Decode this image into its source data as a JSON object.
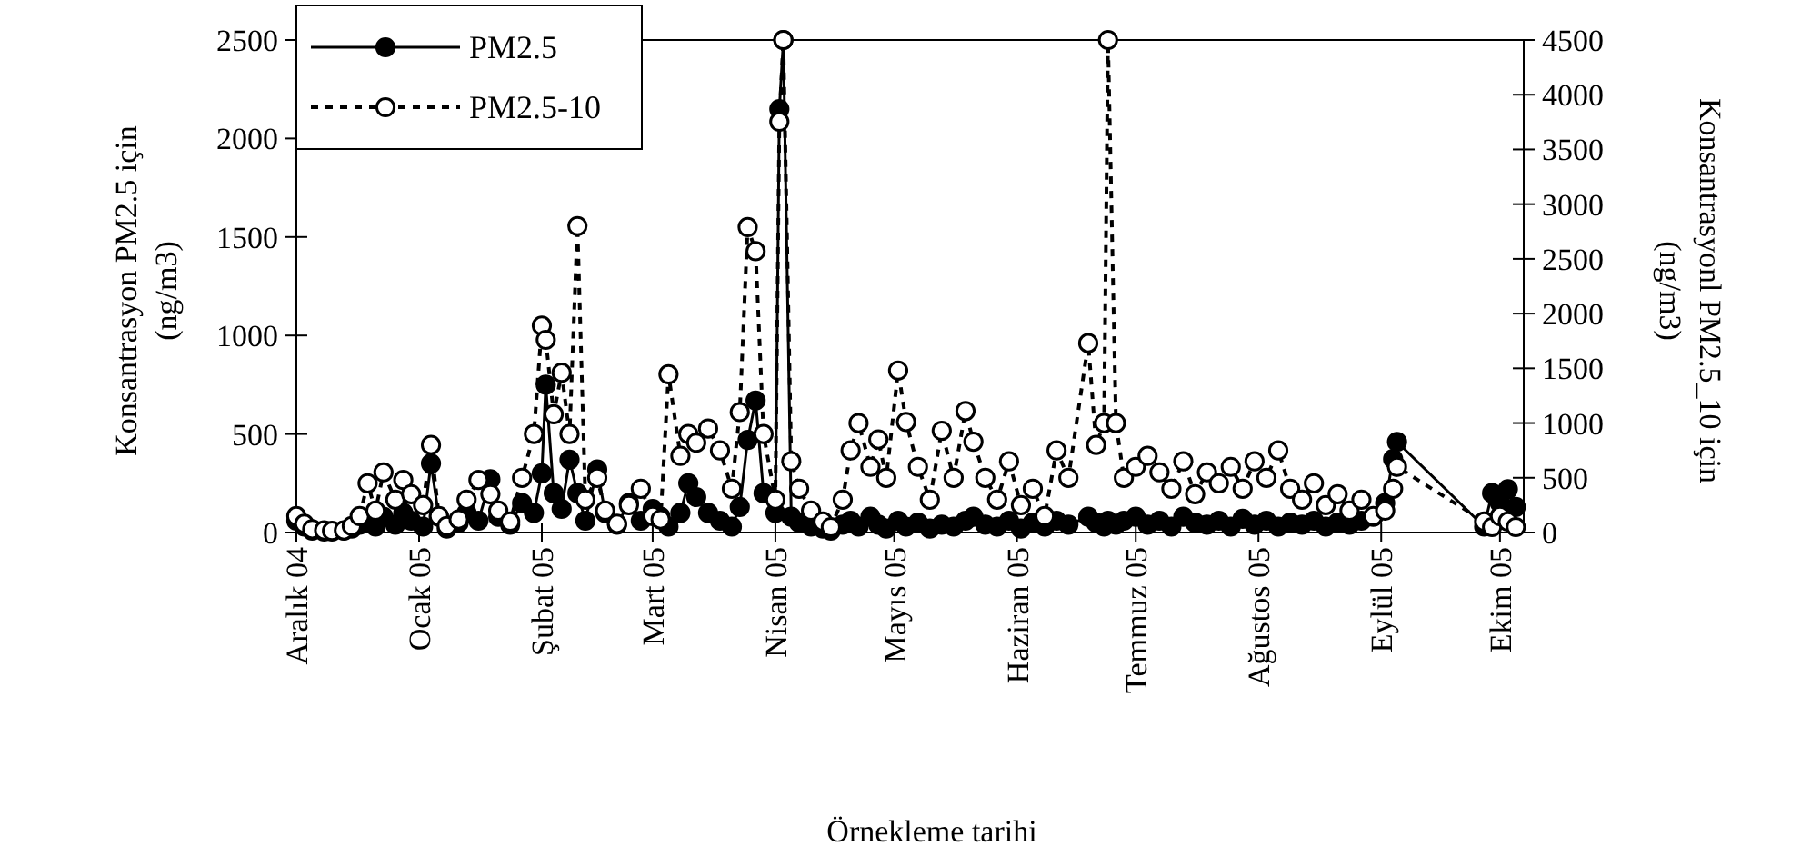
{
  "chart_data": {
    "type": "line",
    "xlabel": "Örnekleme tarihi",
    "ylabel": "Konsantrasyon PM2.5 için\n(ng/m3)",
    "y2label": "Konsantrasyonl PM2.5_10 için\n(ng/m3)",
    "x": [
      "2004-12-01",
      "2004-12-03",
      "2004-12-05",
      "2004-12-08",
      "2004-12-10",
      "2004-12-13",
      "2004-12-15",
      "2004-12-17",
      "2004-12-19",
      "2004-12-21",
      "2004-12-23",
      "2004-12-26",
      "2004-12-28",
      "2004-12-30",
      "2005-01-02",
      "2005-01-04",
      "2005-01-06",
      "2005-01-08",
      "2005-01-11",
      "2005-01-13",
      "2005-01-16",
      "2005-01-19",
      "2005-01-21",
      "2005-01-24",
      "2005-01-27",
      "2005-01-30",
      "2005-02-01",
      "2005-02-02",
      "2005-02-04",
      "2005-02-06",
      "2005-02-08",
      "2005-02-10",
      "2005-02-12",
      "2005-02-15",
      "2005-02-17",
      "2005-02-20",
      "2005-02-23",
      "2005-02-26",
      "2005-03-01",
      "2005-03-03",
      "2005-03-05",
      "2005-03-08",
      "2005-03-10",
      "2005-03-12",
      "2005-03-15",
      "2005-03-18",
      "2005-03-21",
      "2005-03-23",
      "2005-03-25",
      "2005-03-27",
      "2005-03-29",
      "2005-04-01",
      "2005-04-02",
      "2005-04-03",
      "2005-04-05",
      "2005-04-07",
      "2005-04-10",
      "2005-04-13",
      "2005-04-15",
      "2005-04-18",
      "2005-04-20",
      "2005-04-22",
      "2005-04-25",
      "2005-04-27",
      "2005-04-29",
      "2005-05-02",
      "2005-05-04",
      "2005-05-07",
      "2005-05-10",
      "2005-05-13",
      "2005-05-16",
      "2005-05-19",
      "2005-05-21",
      "2005-05-24",
      "2005-05-27",
      "2005-05-30",
      "2005-06-02",
      "2005-06-05",
      "2005-06-08",
      "2005-06-11",
      "2005-06-14",
      "2005-06-19",
      "2005-06-21",
      "2005-06-23",
      "2005-06-24",
      "2005-06-26",
      "2005-06-28",
      "2005-07-01",
      "2005-07-04",
      "2005-07-07",
      "2005-07-10",
      "2005-07-13",
      "2005-07-16",
      "2005-07-19",
      "2005-07-22",
      "2005-07-25",
      "2005-07-28",
      "2005-07-31",
      "2005-08-03",
      "2005-08-06",
      "2005-08-09",
      "2005-08-12",
      "2005-08-15",
      "2005-08-18",
      "2005-08-21",
      "2005-08-24",
      "2005-08-27",
      "2005-08-30",
      "2005-09-02",
      "2005-09-04",
      "2005-09-05",
      "2005-09-27",
      "2005-09-29",
      "2005-10-01",
      "2005-10-03",
      "2005-10-05"
    ],
    "series": [
      {
        "name": "PM2.5",
        "color": "#000000",
        "line_style": "solid",
        "values": [
          60,
          30,
          10,
          5,
          5,
          10,
          20,
          40,
          60,
          30,
          80,
          40,
          100,
          60,
          30,
          350,
          80,
          20,
          50,
          100,
          60,
          270,
          80,
          40,
          150,
          100,
          300,
          750,
          200,
          120,
          370,
          200,
          60,
          320,
          100,
          40,
          150,
          60,
          120,
          80,
          30,
          100,
          250,
          180,
          100,
          60,
          30,
          130,
          470,
          670,
          200,
          100,
          2149,
          2500,
          80,
          50,
          30,
          20,
          10,
          40,
          60,
          30,
          80,
          40,
          20,
          60,
          30,
          50,
          20,
          40,
          30,
          60,
          80,
          40,
          30,
          60,
          20,
          50,
          30,
          60,
          40,
          80,
          50,
          30,
          60,
          40,
          60,
          80,
          40,
          60,
          30,
          80,
          50,
          40,
          60,
          30,
          70,
          40,
          60,
          30,
          50,
          40,
          60,
          30,
          50,
          40,
          60,
          80,
          150,
          373,
          460,
          30,
          200,
          150,
          220,
          130
        ]
      },
      {
        "name": "PM2.5-10",
        "color": "#000000",
        "line_style": "dashed",
        "axis": "y2",
        "values": [
          150,
          80,
          30,
          20,
          15,
          20,
          60,
          150,
          450,
          200,
          550,
          300,
          480,
          350,
          250,
          800,
          150,
          60,
          120,
          300,
          480,
          350,
          200,
          100,
          500,
          900,
          1890,
          1760,
          1080,
          1460,
          900,
          2800,
          300,
          500,
          200,
          80,
          250,
          400,
          150,
          120,
          1445,
          700,
          900,
          820,
          950,
          750,
          400,
          1100,
          2790,
          2570,
          900,
          300,
          3753,
          4500,
          650,
          400,
          200,
          100,
          50,
          300,
          750,
          1000,
          600,
          850,
          500,
          1480,
          1010,
          600,
          300,
          930,
          500,
          1110,
          830,
          500,
          300,
          650,
          250,
          400,
          150,
          750,
          500,
          1730,
          800,
          1000,
          4500,
          1000,
          500,
          600,
          700,
          550,
          400,
          650,
          350,
          550,
          450,
          600,
          400,
          650,
          500,
          750,
          400,
          300,
          450,
          250,
          350,
          200,
          300,
          150,
          200,
          400,
          600,
          100,
          50,
          150,
          100,
          50
        ]
      }
    ],
    "xlim": [
      "2004-12-01",
      "2005-10-07"
    ],
    "xticks": [
      {
        "value": "2004-12-01",
        "label": "Aralık 04"
      },
      {
        "value": "2005-01-01",
        "label": "Ocak 05"
      },
      {
        "value": "2005-02-01",
        "label": "Şubat 05"
      },
      {
        "value": "2005-03-01",
        "label": "Mart 05"
      },
      {
        "value": "2005-04-01",
        "label": "Nisan 05"
      },
      {
        "value": "2005-05-01",
        "label": "Mayıs 05"
      },
      {
        "value": "2005-06-01",
        "label": "Haziran 05"
      },
      {
        "value": "2005-07-01",
        "label": "Temmuz 05"
      },
      {
        "value": "2005-08-01",
        "label": "Ağustos 05"
      },
      {
        "value": "2005-09-01",
        "label": "Eylül 05"
      },
      {
        "value": "2005-10-01",
        "label": "Ekim 05"
      }
    ],
    "ylim": [
      0,
      2500
    ],
    "yticks": [
      0,
      500,
      1000,
      1500,
      2000,
      2500
    ],
    "y2lim": [
      0,
      4500
    ],
    "y2ticks": [
      0,
      500,
      1000,
      1500,
      2000,
      2500,
      3000,
      3500,
      4000,
      4500
    ],
    "marker": "circle",
    "legend": "top left",
    "grid": false
  }
}
